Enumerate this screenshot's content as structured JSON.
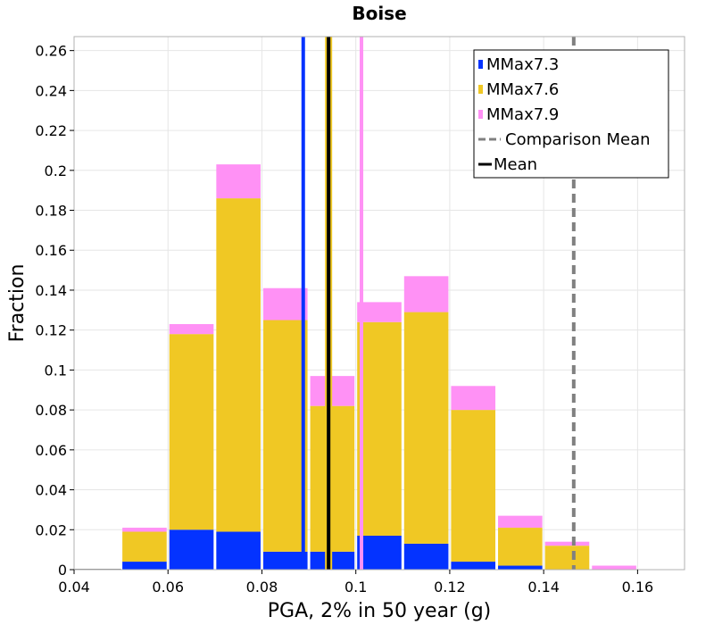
{
  "chart_data": {
    "type": "bar",
    "stacked": true,
    "title": "Boise",
    "xlabel": "PGA, 2% in 50 year (g)",
    "ylabel": "Fraction",
    "xlim": [
      0.04,
      0.17
    ],
    "ylim": [
      0,
      0.267
    ],
    "xticks": [
      0.04,
      0.06,
      0.08,
      0.1,
      0.12,
      0.14,
      0.16
    ],
    "xtick_labels": [
      "0.04",
      "0.06",
      "0.08",
      "0.1",
      "0.12",
      "0.14",
      "0.16"
    ],
    "yticks": [
      0,
      0.02,
      0.04,
      0.06,
      0.08,
      0.1,
      0.12,
      0.14,
      0.16,
      0.18,
      0.2,
      0.22,
      0.24,
      0.26
    ],
    "ytick_labels": [
      "0",
      "0.02",
      "0.04",
      "0.06",
      "0.08",
      "0.1",
      "0.12",
      "0.14",
      "0.16",
      "0.18",
      "0.2",
      "0.22",
      "0.24",
      "0.26"
    ],
    "bin_width": 0.01,
    "bin_centers": [
      0.045,
      0.055,
      0.065,
      0.075,
      0.085,
      0.095,
      0.105,
      0.115,
      0.125,
      0.135,
      0.145,
      0.155
    ],
    "series": [
      {
        "name": "MMax7.3",
        "color": "#0433ff",
        "values": [
          0.0,
          0.004,
          0.02,
          0.019,
          0.009,
          0.009,
          0.017,
          0.013,
          0.004,
          0.002,
          0.0,
          0.0
        ]
      },
      {
        "name": "MMax7.6",
        "color": "#f0c824",
        "values": [
          0.0,
          0.015,
          0.098,
          0.167,
          0.116,
          0.073,
          0.107,
          0.116,
          0.076,
          0.019,
          0.012,
          0.0
        ]
      },
      {
        "name": "MMax7.9",
        "color": "#ff91f5",
        "values": [
          0.0,
          0.002,
          0.005,
          0.017,
          0.016,
          0.015,
          0.01,
          0.018,
          0.012,
          0.006,
          0.002,
          0.002
        ]
      }
    ],
    "vertical_lines": [
      {
        "name": "MMax7.3 mean",
        "x": 0.0888,
        "color": "#0433ff",
        "style": "solid"
      },
      {
        "name": "MMax7.6 mean",
        "x": 0.0942,
        "color": "#f0c824",
        "style": "solid"
      },
      {
        "name": "MMax7.9 mean",
        "x": 0.1012,
        "color": "#ff91f5",
        "style": "solid"
      },
      {
        "name": "Mean",
        "x": 0.0942,
        "color": "#000000",
        "style": "solid"
      },
      {
        "name": "Comparison Mean",
        "x": 0.1464,
        "color": "#808080",
        "style": "dashed"
      }
    ],
    "legend": {
      "position": "top-right",
      "entries": [
        {
          "label": "MMax7.3",
          "kind": "box",
          "color": "#0433ff"
        },
        {
          "label": "MMax7.6",
          "kind": "box",
          "color": "#f0c824"
        },
        {
          "label": "MMax7.9",
          "kind": "box",
          "color": "#ff91f5"
        },
        {
          "label": "Comparison Mean",
          "kind": "dashed-line",
          "color": "#808080"
        },
        {
          "label": "Mean",
          "kind": "line",
          "color": "#000000"
        }
      ]
    },
    "grid": true
  }
}
